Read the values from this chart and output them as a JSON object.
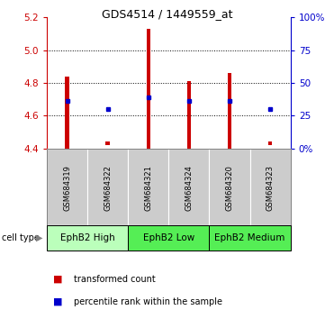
{
  "title": "GDS4514 / 1449559_at",
  "samples": [
    "GSM684319",
    "GSM684322",
    "GSM684321",
    "GSM684324",
    "GSM684320",
    "GSM684323"
  ],
  "bar_bottoms": [
    4.4,
    4.42,
    4.4,
    4.4,
    4.4,
    4.42
  ],
  "bar_tops": [
    4.84,
    4.44,
    5.13,
    4.81,
    4.86,
    4.44
  ],
  "blue_y": [
    4.69,
    4.64,
    4.71,
    4.69,
    4.69,
    4.64
  ],
  "ylim_left": [
    4.4,
    5.2
  ],
  "ylim_right": [
    0,
    100
  ],
  "yticks_left": [
    4.4,
    4.6,
    4.8,
    5.0,
    5.2
  ],
  "yticks_right": [
    0,
    25,
    50,
    75,
    100
  ],
  "ytick_labels_right": [
    "0%",
    "25",
    "50",
    "75",
    "100%"
  ],
  "bar_color": "#cc0000",
  "blue_color": "#0000cc",
  "left_axis_color": "#cc0000",
  "right_axis_color": "#0000cc",
  "sample_box_color": "#cccccc",
  "cell_type_high_color": "#bbffbb",
  "cell_type_low_color": "#55ee55",
  "cell_type_medium_color": "#55ee55",
  "bar_width": 0.1,
  "title_fontsize": 9,
  "tick_fontsize": 7.5,
  "sample_fontsize": 6.0,
  "cell_fontsize": 7.5,
  "legend_fontsize": 7.0
}
